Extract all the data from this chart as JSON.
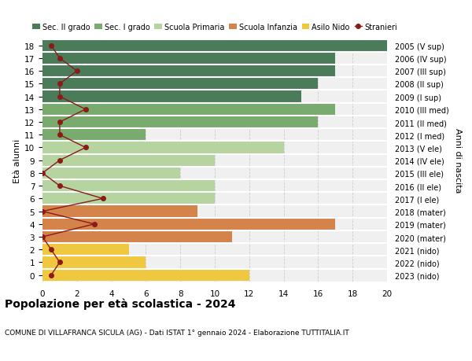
{
  "ages": [
    18,
    17,
    16,
    15,
    14,
    13,
    12,
    11,
    10,
    9,
    8,
    7,
    6,
    5,
    4,
    3,
    2,
    1,
    0
  ],
  "right_labels": [
    "2005 (V sup)",
    "2006 (IV sup)",
    "2007 (III sup)",
    "2008 (II sup)",
    "2009 (I sup)",
    "2010 (III med)",
    "2011 (II med)",
    "2012 (I med)",
    "2013 (V ele)",
    "2014 (IV ele)",
    "2015 (III ele)",
    "2016 (II ele)",
    "2017 (I ele)",
    "2018 (mater)",
    "2019 (mater)",
    "2020 (mater)",
    "2021 (nido)",
    "2022 (nido)",
    "2023 (nido)"
  ],
  "bar_values": [
    20,
    17,
    17,
    16,
    15,
    17,
    16,
    6,
    14,
    10,
    8,
    10,
    10,
    9,
    17,
    11,
    5,
    6,
    12
  ],
  "bar_colors": [
    "#4a7c59",
    "#4a7c59",
    "#4a7c59",
    "#4a7c59",
    "#4a7c59",
    "#7aab6e",
    "#7aab6e",
    "#7aab6e",
    "#b5d4a0",
    "#b5d4a0",
    "#b5d4a0",
    "#b5d4a0",
    "#b5d4a0",
    "#d4834a",
    "#d4834a",
    "#d4834a",
    "#f0c840",
    "#f0c840",
    "#f0c840"
  ],
  "stranieri_values": [
    0.5,
    1.0,
    2.0,
    1.0,
    1.0,
    2.5,
    1.0,
    1.0,
    2.5,
    1.0,
    0.0,
    1.0,
    3.5,
    0.0,
    3.0,
    0.0,
    0.5,
    1.0,
    0.5
  ],
  "stranieri_color": "#8b1a1a",
  "legend_labels": [
    "Sec. II grado",
    "Sec. I grado",
    "Scuola Primaria",
    "Scuola Infanzia",
    "Asilo Nido",
    "Stranieri"
  ],
  "legend_colors": [
    "#4a7c59",
    "#7aab6e",
    "#b5d4a0",
    "#d4834a",
    "#f0c840",
    "#8b1a1a"
  ],
  "title": "Popolazione per età scolastica - 2024",
  "subtitle": "COMUNE DI VILLAFRANCA SICULA (AG) - Dati ISTAT 1° gennaio 2024 - Elaborazione TUTTITALIA.IT",
  "ylabel_left": "Età alunni",
  "ylabel_right": "Anni di nascita",
  "xlim": [
    0,
    20
  ],
  "xticks": [
    0,
    2,
    4,
    6,
    8,
    10,
    12,
    14,
    16,
    18,
    20
  ],
  "background_color": "#ffffff",
  "bar_background_color": "#f0f0f0"
}
